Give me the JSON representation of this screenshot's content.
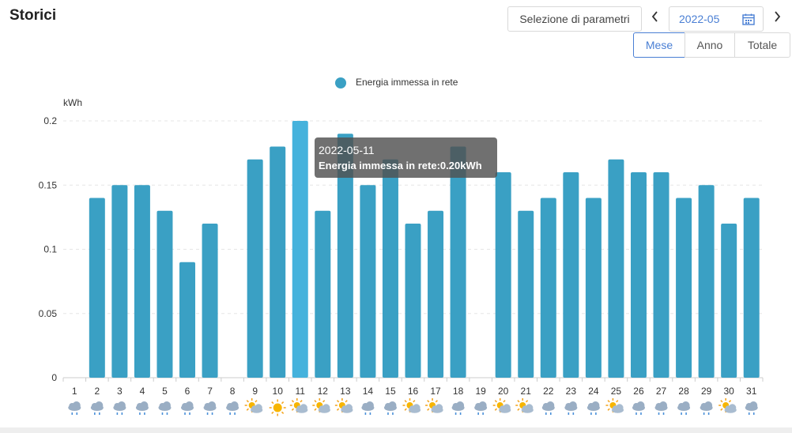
{
  "page": {
    "title": "Storici"
  },
  "toolbar": {
    "param_button": "Selezione di parametri",
    "prev_icon": "chevron-left-icon",
    "next_icon": "chevron-right-icon",
    "date_value": "2022-05",
    "calendar_icon": "calendar-icon",
    "segments": [
      "Mese",
      "Anno",
      "Totale"
    ],
    "active_segment": "Mese"
  },
  "tooltip": {
    "date": "2022-05-11",
    "value_text": "Energia immessa in rete:0.20kWh"
  },
  "weather": [
    "rain",
    "rain",
    "rain",
    "rain",
    "rain",
    "rain",
    "rain",
    "rain",
    "partly-sunny",
    "sunny",
    "partly-sunny",
    "partly-sunny",
    "partly-sunny",
    "rain",
    "rain",
    "partly-sunny",
    "partly-sunny",
    "rain",
    "rain",
    "partly-sunny",
    "partly-sunny",
    "rain",
    "rain",
    "rain",
    "partly-sunny",
    "rain",
    "rain",
    "rain",
    "rain",
    "partly-sunny",
    "rain"
  ],
  "colors": {
    "bar": "#3aa0c4",
    "bar_highlight": "#45b2dc",
    "grid": "#e6e6e6",
    "axis": "#cccccc"
  },
  "chart_data": {
    "type": "bar",
    "ylabel": "kWh",
    "legend": [
      "Energia immessa in rete"
    ],
    "ylim": [
      0,
      0.2
    ],
    "yticks": [
      0,
      0.05,
      0.1,
      0.15,
      0.2
    ],
    "ytick_labels": [
      "0",
      "0.05",
      "0.1",
      "0.15",
      "0.2"
    ],
    "categories": [
      "1",
      "2",
      "3",
      "4",
      "5",
      "6",
      "7",
      "8",
      "9",
      "10",
      "11",
      "12",
      "13",
      "14",
      "15",
      "16",
      "17",
      "18",
      "19",
      "20",
      "21",
      "22",
      "23",
      "24",
      "25",
      "26",
      "27",
      "28",
      "29",
      "30",
      "31"
    ],
    "series": [
      {
        "name": "Energia immessa in rete",
        "values": [
          0,
          0.14,
          0.15,
          0.15,
          0.13,
          0.09,
          0.12,
          0,
          0.17,
          0.18,
          0.2,
          0.13,
          0.19,
          0.15,
          0.17,
          0.12,
          0.13,
          0.18,
          0,
          0.16,
          0.13,
          0.14,
          0.16,
          0.14,
          0.17,
          0.16,
          0.16,
          0.14,
          0.15,
          0.12,
          0.14
        ]
      }
    ],
    "highlight_category": "11",
    "grid": true,
    "legend_position": "top-center"
  }
}
